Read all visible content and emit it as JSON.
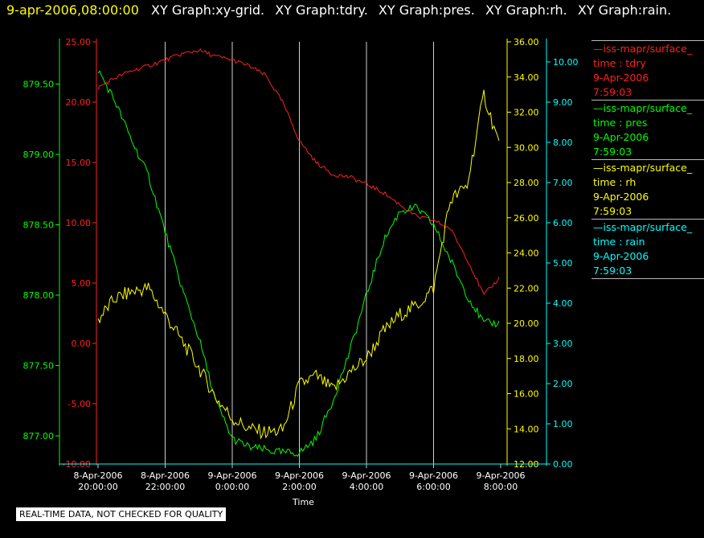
{
  "header": {
    "date": "9-apr-2006,08:00:00",
    "titles": [
      "XY Graph:xy-grid.",
      "XY Graph:tdry.",
      "XY Graph:pres.",
      "XY Graph:rh.",
      "XY Graph:rain."
    ]
  },
  "legend": [
    {
      "name": "—iss-mapr/surface_",
      "label": "time : tdry",
      "date": "9-Apr-2006",
      "time": "7:59:03",
      "color": "#ff2020"
    },
    {
      "name": "—iss-mapr/surface_",
      "label": "time : pres",
      "date": "9-Apr-2006",
      "time": "7:59:03",
      "color": "#00ff00"
    },
    {
      "name": "—iss-mapr/surface_",
      "label": "time : rh",
      "date": "9-Apr-2006",
      "time": "7:59:03",
      "color": "#ffff00"
    },
    {
      "name": "—iss-mapr/surface_",
      "label": "time : rain",
      "date": "9-Apr-2006",
      "time": "7:59:03",
      "color": "#00ffff"
    }
  ],
  "disclaimer": "REAL-TIME DATA, NOT CHECKED FOR QUALITY",
  "chart_data": {
    "type": "line",
    "xlabel": "Time",
    "x_ticks": [
      [
        "8-Apr-2006",
        "20:00:00"
      ],
      [
        "8-Apr-2006",
        "22:00:00"
      ],
      [
        "9-Apr-2006",
        "0:00:00"
      ],
      [
        "9-Apr-2006",
        "2:00:00"
      ],
      [
        "9-Apr-2006",
        "4:00:00"
      ],
      [
        "9-Apr-2006",
        "6:00:00"
      ],
      [
        "9-Apr-2006",
        "8:00:00"
      ]
    ],
    "xlim": [
      "8-Apr-2006 20:00",
      "9-Apr-2006 08:00"
    ],
    "grid": "vertical",
    "axes": {
      "pres": {
        "color": "#00ff00",
        "ylim": [
          876.8,
          879.8
        ],
        "ticks": [
          "877.00",
          "877.50",
          "878.00",
          "878.50",
          "879.00",
          "879.50"
        ]
      },
      "tdry": {
        "color": "#ff2020",
        "ylim": [
          -10,
          25
        ],
        "ticks": [
          "-10.00",
          "-5.00",
          "0.00",
          "5.00",
          "10.00",
          "15.00",
          "20.00",
          "25.00"
        ]
      },
      "rh": {
        "color": "#ffff00",
        "ylim": [
          12,
          36
        ],
        "ticks": [
          "12.00",
          "14.00",
          "16.00",
          "18.00",
          "20.00",
          "22.00",
          "24.00",
          "26.00",
          "28.00",
          "30.00",
          "32.00",
          "34.00",
          "36.00"
        ]
      },
      "rain": {
        "color": "#00ffff",
        "ylim": [
          0,
          10.5
        ],
        "ticks": [
          "0.00",
          "1.00",
          "2.00",
          "3.00",
          "4.00",
          "5.00",
          "6.00",
          "7.00",
          "8.00",
          "9.00",
          "10.00"
        ]
      }
    },
    "series": [
      {
        "name": "tdry",
        "axis": "tdry",
        "color": "#ff2020",
        "x": [
          "8-Apr-2006 20:00",
          "8-Apr-2006 20:30",
          "8-Apr-2006 21:00",
          "8-Apr-2006 21:30",
          "8-Apr-2006 22:00",
          "8-Apr-2006 22:30",
          "8-Apr-2006 23:00",
          "8-Apr-2006 23:30",
          "9-Apr-2006 00:00",
          "9-Apr-2006 00:30",
          "9-Apr-2006 01:00",
          "9-Apr-2006 01:30",
          "9-Apr-2006 02:00",
          "9-Apr-2006 02:30",
          "9-Apr-2006 03:00",
          "9-Apr-2006 03:30",
          "9-Apr-2006 04:00",
          "9-Apr-2006 04:30",
          "9-Apr-2006 05:00",
          "9-Apr-2006 05:30",
          "9-Apr-2006 06:00",
          "9-Apr-2006 06:30",
          "9-Apr-2006 07:00",
          "9-Apr-2006 07:30",
          "9-Apr-2006 07:59"
        ],
        "values": [
          21.2,
          22.0,
          22.6,
          23.0,
          23.5,
          24.0,
          24.3,
          23.8,
          23.5,
          23.0,
          22.2,
          20.0,
          16.8,
          15.0,
          14.0,
          13.8,
          13.2,
          12.5,
          11.5,
          10.5,
          10.2,
          9.5,
          7.0,
          4.0,
          5.5
        ]
      },
      {
        "name": "pres",
        "axis": "pres",
        "color": "#00ff00",
        "x": [
          "8-Apr-2006 20:00",
          "8-Apr-2006 20:30",
          "8-Apr-2006 21:00",
          "8-Apr-2006 21:30",
          "8-Apr-2006 22:00",
          "8-Apr-2006 22:30",
          "8-Apr-2006 23:00",
          "8-Apr-2006 23:30",
          "9-Apr-2006 00:00",
          "9-Apr-2006 00:30",
          "9-Apr-2006 01:00",
          "9-Apr-2006 01:30",
          "9-Apr-2006 02:00",
          "9-Apr-2006 02:30",
          "9-Apr-2006 03:00",
          "9-Apr-2006 03:30",
          "9-Apr-2006 04:00",
          "9-Apr-2006 04:30",
          "9-Apr-2006 05:00",
          "9-Apr-2006 05:30",
          "9-Apr-2006 06:00",
          "9-Apr-2006 06:30",
          "9-Apr-2006 07:00",
          "9-Apr-2006 07:30",
          "9-Apr-2006 07:59"
        ],
        "values": [
          879.6,
          879.38,
          879.1,
          878.85,
          878.45,
          878.05,
          877.7,
          877.25,
          876.98,
          876.92,
          876.9,
          876.88,
          876.88,
          876.98,
          877.25,
          877.6,
          878.0,
          878.38,
          878.6,
          878.62,
          878.5,
          878.25,
          878.0,
          877.8,
          877.8
        ]
      },
      {
        "name": "rh",
        "axis": "rh",
        "color": "#ffff00",
        "x": [
          "8-Apr-2006 20:00",
          "8-Apr-2006 20:30",
          "8-Apr-2006 21:00",
          "8-Apr-2006 21:30",
          "8-Apr-2006 22:00",
          "8-Apr-2006 22:30",
          "8-Apr-2006 23:00",
          "8-Apr-2006 23:30",
          "9-Apr-2006 00:00",
          "9-Apr-2006 00:30",
          "9-Apr-2006 01:00",
          "9-Apr-2006 01:30",
          "9-Apr-2006 02:00",
          "9-Apr-2006 02:30",
          "9-Apr-2006 03:00",
          "9-Apr-2006 03:30",
          "9-Apr-2006 04:00",
          "9-Apr-2006 04:30",
          "9-Apr-2006 05:00",
          "9-Apr-2006 05:30",
          "9-Apr-2006 06:00",
          "9-Apr-2006 06:30",
          "9-Apr-2006 07:00",
          "9-Apr-2006 07:30",
          "9-Apr-2006 07:59"
        ],
        "values": [
          20.2,
          21.4,
          21.8,
          22.0,
          20.5,
          19.0,
          17.5,
          15.8,
          14.6,
          14.0,
          13.8,
          13.9,
          16.5,
          17.0,
          16.2,
          17.2,
          18.0,
          19.5,
          20.5,
          21.0,
          22.0,
          27.0,
          27.8,
          33.0,
          30.0
        ]
      },
      {
        "name": "rain",
        "axis": "rain",
        "color": "#00ffff",
        "x": [
          "8-Apr-2006 20:00",
          "9-Apr-2006 07:59"
        ],
        "values": [
          0.0,
          0.0
        ]
      }
    ]
  }
}
